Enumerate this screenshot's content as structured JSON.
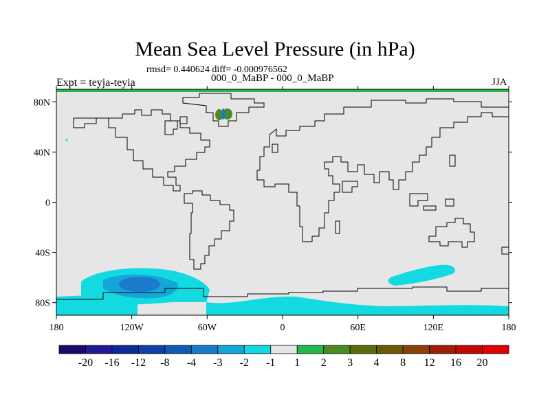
{
  "chart_data": {
    "type": "heatmap",
    "title": "Mean Sea Level Pressure (in hPa)",
    "stats_text": "rmsd= 0.440624 diff= -0.000976562",
    "subtitle": "000_0_MaBP - 000_0_MaBP",
    "left_label": "Expt = teyja-teyia",
    "right_label": "JJA",
    "x_ticks": [
      {
        "value": -180,
        "label": "180"
      },
      {
        "value": -120,
        "label": "120W"
      },
      {
        "value": -60,
        "label": "60W"
      },
      {
        "value": 0,
        "label": "0"
      },
      {
        "value": 60,
        "label": "60E"
      },
      {
        "value": 120,
        "label": "120E"
      },
      {
        "value": 180,
        "label": "180"
      }
    ],
    "y_ticks": [
      {
        "value": 80,
        "label": "80N"
      },
      {
        "value": 40,
        "label": "40N"
      },
      {
        "value": 0,
        "label": "0"
      },
      {
        "value": -40,
        "label": "40S"
      },
      {
        "value": -80,
        "label": "80S"
      }
    ],
    "xlim": [
      -180,
      180
    ],
    "ylim": [
      -90,
      90
    ],
    "colorbar": {
      "labels": [
        "-20",
        "-16",
        "-12",
        "-8",
        "-4",
        "-3",
        "-2",
        "-1",
        "1",
        "2",
        "3",
        "4",
        "8",
        "12",
        "16",
        "20"
      ],
      "colors": [
        "#1a0a6b",
        "#1f1a96",
        "#0a2a9a",
        "#0d40a8",
        "#0f59b8",
        "#1a7bcc",
        "#14a6d8",
        "#13d9e0",
        "#e6e6e6",
        "#22b84a",
        "#4c8a22",
        "#5a6b10",
        "#6b5a05",
        "#8a4008",
        "#a01e06",
        "#c00a00",
        "#e00000"
      ]
    },
    "anomalies": [
      {
        "name": "south-pacific-negative",
        "lon": -120,
        "lat": -65,
        "level": "-2 to -8"
      },
      {
        "name": "indian-ocean-negative",
        "lon": 120,
        "lat": -58,
        "level": "-1 to -2"
      },
      {
        "name": "antarctic-coast-negative",
        "lon": 0,
        "lat": -80,
        "level": "-1 to -2"
      },
      {
        "name": "greenland-positive",
        "lon": -45,
        "lat": 72,
        "level": "2 to 4"
      }
    ]
  }
}
